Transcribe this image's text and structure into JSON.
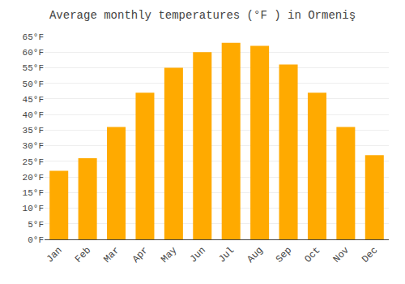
{
  "chart_data": {
    "type": "bar",
    "title": "Average monthly temperatures (°F ) in Ormeniş",
    "categories": [
      "Jan",
      "Feb",
      "Mar",
      "Apr",
      "May",
      "Jun",
      "Jul",
      "Aug",
      "Sep",
      "Oct",
      "Nov",
      "Dec"
    ],
    "values": [
      22,
      26,
      36,
      47,
      55,
      60,
      63,
      62,
      56,
      47,
      36,
      27
    ],
    "color": "#FFAA00",
    "ylim": [
      0,
      65
    ],
    "yticks": [
      {
        "value": 0,
        "label": "0°F"
      },
      {
        "value": 5,
        "label": "5°F"
      },
      {
        "value": 10,
        "label": "10°F"
      },
      {
        "value": 15,
        "label": "15°F"
      },
      {
        "value": 20,
        "label": "20°F"
      },
      {
        "value": 25,
        "label": "25°F"
      },
      {
        "value": 30,
        "label": "30°F"
      },
      {
        "value": 35,
        "label": "35°F"
      },
      {
        "value": 40,
        "label": "40°F"
      },
      {
        "value": 45,
        "label": "45°F"
      },
      {
        "value": 50,
        "label": "50°F"
      },
      {
        "value": 55,
        "label": "55°F"
      },
      {
        "value": 60,
        "label": "60°F"
      },
      {
        "value": 65,
        "label": "65°F"
      }
    ],
    "grid": true
  }
}
